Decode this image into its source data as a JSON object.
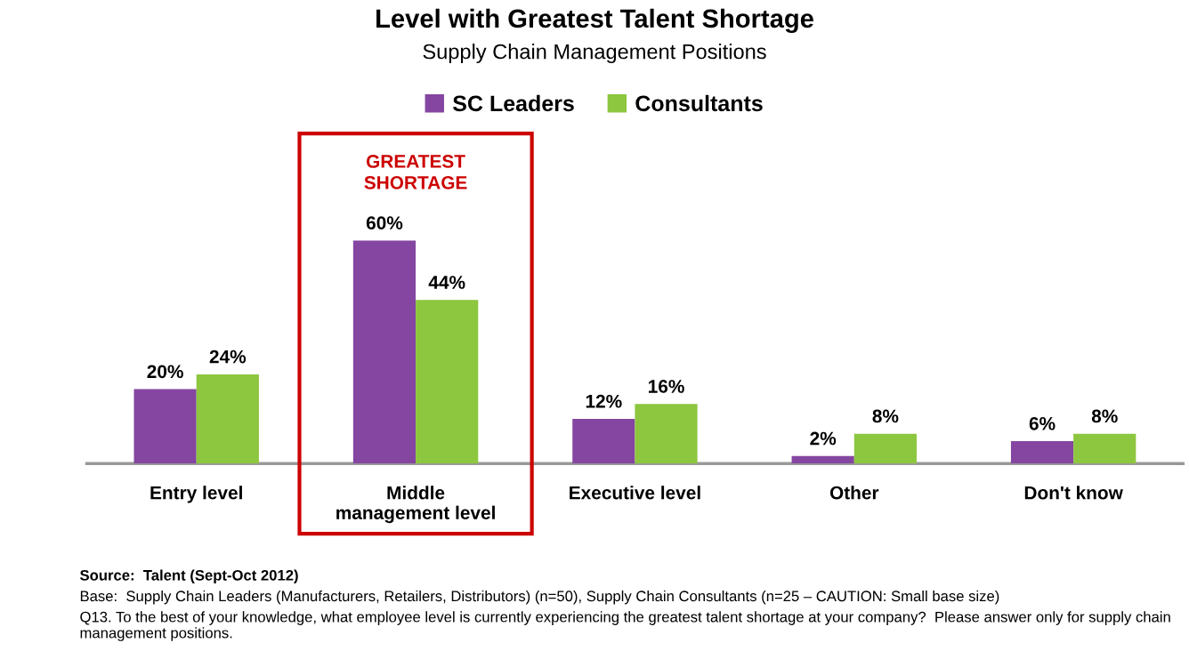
{
  "chart_data": {
    "type": "bar",
    "title": "Level with Greatest Talent Shortage",
    "subtitle": "Supply Chain Management Positions",
    "categories": [
      "Entry level",
      "Middle\nmanagement level",
      "Executive level",
      "Other",
      "Don't know"
    ],
    "series": [
      {
        "name": "SC Leaders",
        "color": "#8446a0",
        "values": [
          20,
          60,
          12,
          2,
          6
        ],
        "value_labels": [
          "20%",
          "60%",
          "12%",
          "2%",
          "6%"
        ]
      },
      {
        "name": "Consultants",
        "color": "#8dc63f",
        "values": [
          24,
          44,
          16,
          8,
          8
        ],
        "value_labels": [
          "24%",
          "44%",
          "16%",
          "8%",
          "8%"
        ]
      }
    ],
    "legend": "top",
    "grid": false,
    "annotations": [
      "GREATEST\nSHORTAGE",
      "Source:  Talent (Sept-Oct 2012)",
      "Base:  Supply Chain Leaders (Manufacturers, Retailers, Distributors) (n=50), Supply Chain Consultants (n=25 – CAUTION: Small base size)",
      "Q13. To the best of your knowledge, what employee level is currently experiencing the greatest talent shortage at your company?  Please answer only for supply chain management positions."
    ]
  }
}
